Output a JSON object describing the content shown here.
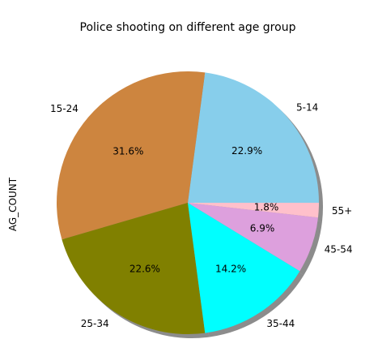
{
  "chart_data": {
    "type": "pie",
    "title": "Police shooting on different age group",
    "ylabel": "AG_COUNT",
    "shadow": true,
    "start_angle_deg": 0,
    "direction": "counterclockwise",
    "slices": [
      {
        "label": "5-14",
        "percent": 22.9,
        "percent_label": "22.9%",
        "color": "#87CEEB"
      },
      {
        "label": "15-24",
        "percent": 31.6,
        "percent_label": "31.6%",
        "color": "#CD853F"
      },
      {
        "label": "25-34",
        "percent": 22.6,
        "percent_label": "22.6%",
        "color": "#808000"
      },
      {
        "label": "35-44",
        "percent": 14.2,
        "percent_label": "14.2%",
        "color": "#00FFFF"
      },
      {
        "label": "45-54",
        "percent": 6.9,
        "percent_label": "6.9%",
        "color": "#DDA0DD"
      },
      {
        "label": "55+",
        "percent": 1.8,
        "percent_label": "1.8%",
        "color": "#FFC0CB"
      }
    ]
  }
}
